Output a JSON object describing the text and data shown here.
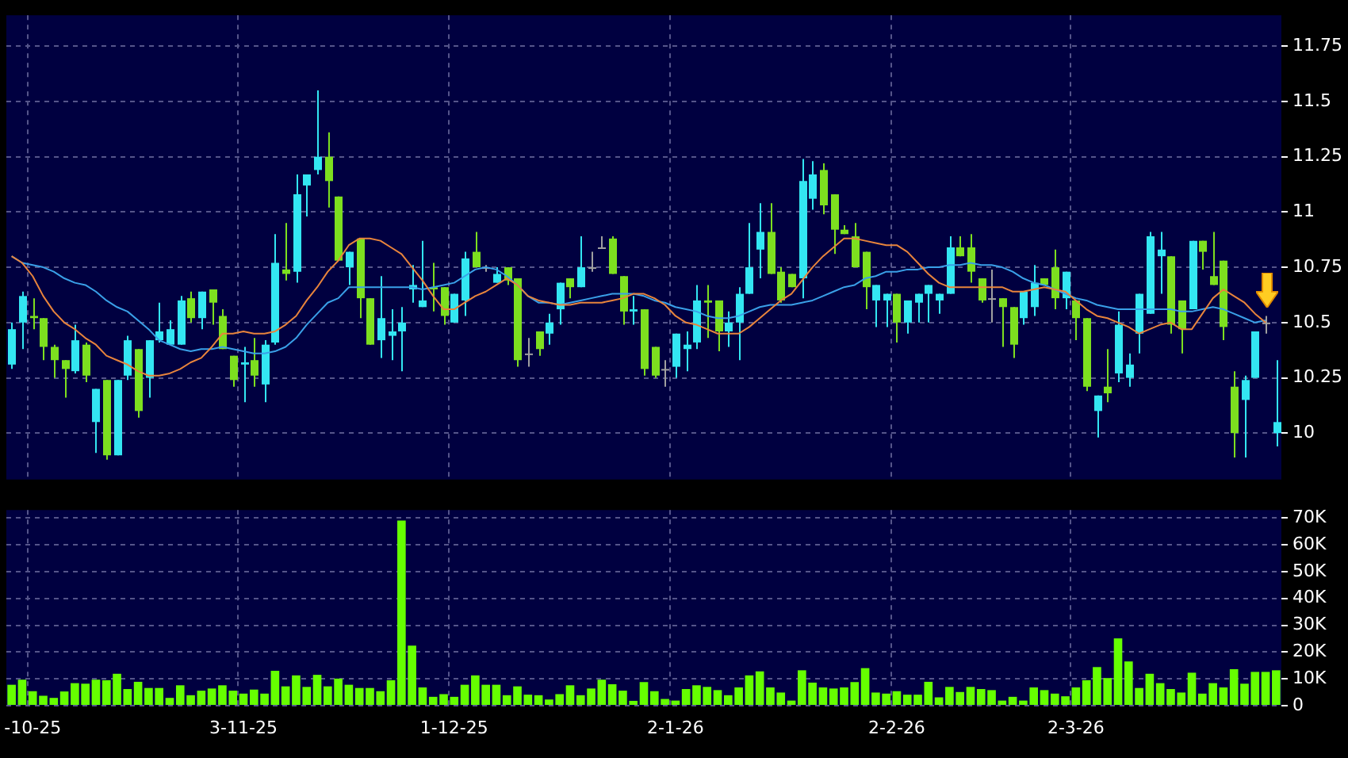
{
  "chart_data": [
    {
      "type": "candlestick",
      "categories": [
        null,
        null,
        null,
        null,
        null,
        null,
        null,
        null,
        null,
        null,
        null,
        null,
        null,
        null,
        null,
        null,
        null,
        null,
        null,
        null,
        null,
        null,
        null,
        null,
        null,
        null,
        null,
        null,
        null,
        null,
        null,
        null,
        null,
        null,
        null,
        null,
        null,
        null,
        null,
        null,
        null,
        null,
        null,
        null,
        null,
        null,
        null,
        null,
        null,
        null,
        null,
        null,
        null,
        null,
        null,
        null,
        null,
        null,
        null,
        null,
        null,
        null,
        null,
        null,
        null,
        null,
        null,
        null,
        null,
        null,
        null,
        null,
        null,
        null,
        null,
        null,
        null,
        null,
        null,
        null,
        null,
        null,
        null,
        null,
        null,
        null,
        null,
        null,
        null,
        null,
        null,
        null,
        null,
        null,
        null,
        null,
        null,
        null,
        null,
        null,
        null,
        null,
        null,
        null,
        null,
        null,
        null,
        null,
        null,
        null,
        null,
        null,
        null,
        null,
        null,
        null,
        null,
        null,
        null,
        null,
        null
      ],
      "ohlc": [
        [
          10.31,
          10.5,
          10.29,
          10.47
        ],
        [
          10.5,
          10.64,
          10.38,
          10.62
        ],
        [
          10.53,
          10.61,
          10.47,
          10.52
        ],
        [
          10.52,
          10.52,
          10.33,
          10.39
        ],
        [
          10.39,
          10.4,
          10.25,
          10.33
        ],
        [
          10.33,
          10.33,
          10.16,
          10.29
        ],
        [
          10.28,
          10.49,
          10.27,
          10.42
        ],
        [
          10.4,
          10.41,
          10.23,
          10.26
        ],
        [
          10.05,
          10.2,
          9.91,
          10.2
        ],
        [
          10.24,
          10.24,
          9.88,
          9.9
        ],
        [
          9.9,
          10.24,
          9.9,
          10.24
        ],
        [
          10.26,
          10.44,
          10.24,
          10.42
        ],
        [
          10.38,
          10.38,
          10.07,
          10.1
        ],
        [
          10.25,
          10.42,
          10.16,
          10.42
        ],
        [
          10.42,
          10.59,
          10.41,
          10.46
        ],
        [
          10.4,
          10.51,
          10.4,
          10.47
        ],
        [
          10.4,
          10.62,
          10.4,
          10.6
        ],
        [
          10.61,
          10.64,
          10.5,
          10.52
        ],
        [
          10.52,
          10.64,
          10.47,
          10.64
        ],
        [
          10.65,
          10.65,
          10.49,
          10.59
        ],
        [
          10.53,
          10.56,
          10.38,
          10.38
        ],
        [
          10.35,
          10.35,
          10.21,
          10.24
        ],
        [
          10.31,
          10.39,
          10.14,
          10.32
        ],
        [
          10.33,
          10.43,
          10.21,
          10.26
        ],
        [
          10.22,
          10.42,
          10.14,
          10.4
        ],
        [
          10.41,
          10.9,
          10.4,
          10.77
        ],
        [
          10.74,
          10.95,
          10.69,
          10.72
        ],
        [
          10.73,
          11.17,
          10.68,
          11.08
        ],
        [
          11.12,
          11.17,
          10.98,
          11.17
        ],
        [
          11.19,
          11.55,
          11.17,
          11.25
        ],
        [
          11.25,
          11.36,
          11.02,
          11.14
        ],
        [
          11.07,
          11.07,
          10.78,
          10.78
        ],
        [
          10.75,
          10.82,
          10.67,
          10.82
        ],
        [
          10.88,
          10.88,
          10.52,
          10.61
        ],
        [
          10.61,
          10.61,
          10.4,
          10.4
        ],
        [
          10.42,
          10.71,
          10.34,
          10.52
        ],
        [
          10.44,
          10.56,
          10.33,
          10.46
        ],
        [
          10.46,
          10.57,
          10.28,
          10.5
        ],
        [
          10.65,
          10.76,
          10.59,
          10.67
        ],
        [
          10.57,
          10.87,
          10.57,
          10.6
        ],
        [
          10.66,
          10.77,
          10.55,
          10.65
        ],
        [
          10.66,
          10.66,
          10.49,
          10.53
        ],
        [
          10.5,
          10.63,
          10.5,
          10.63
        ],
        [
          10.6,
          10.82,
          10.53,
          10.79
        ],
        [
          10.82,
          10.91,
          10.75,
          10.75
        ],
        [
          10.75,
          10.76,
          10.73,
          10.75
        ],
        [
          10.68,
          10.75,
          10.68,
          10.72
        ],
        [
          10.75,
          10.75,
          10.67,
          10.69
        ],
        [
          10.7,
          10.7,
          10.3,
          10.33
        ],
        [
          10.36,
          10.43,
          10.3,
          10.36
        ],
        [
          10.46,
          10.46,
          10.35,
          10.38
        ],
        [
          10.45,
          10.54,
          10.4,
          10.5
        ],
        [
          10.56,
          10.68,
          10.49,
          10.68
        ],
        [
          10.7,
          10.7,
          10.61,
          10.66
        ],
        [
          10.66,
          10.89,
          10.66,
          10.75
        ],
        [
          10.75,
          10.82,
          10.73,
          10.75
        ],
        [
          10.84,
          10.89,
          10.84,
          10.84
        ],
        [
          10.88,
          10.89,
          10.72,
          10.72
        ],
        [
          10.71,
          10.71,
          10.49,
          10.55
        ],
        [
          10.55,
          10.62,
          10.49,
          10.56
        ],
        [
          10.56,
          10.56,
          10.26,
          10.29
        ],
        [
          10.39,
          10.39,
          10.25,
          10.26
        ],
        [
          10.29,
          10.33,
          10.21,
          10.29
        ],
        [
          10.3,
          10.45,
          10.25,
          10.45
        ],
        [
          10.38,
          10.46,
          10.28,
          10.4
        ],
        [
          10.41,
          10.67,
          10.38,
          10.6
        ],
        [
          10.6,
          10.67,
          10.43,
          10.59
        ],
        [
          10.6,
          10.6,
          10.37,
          10.46
        ],
        [
          10.46,
          10.55,
          10.39,
          10.5
        ],
        [
          10.5,
          10.66,
          10.33,
          10.63
        ],
        [
          10.63,
          10.95,
          10.63,
          10.75
        ],
        [
          10.83,
          11.04,
          10.7,
          10.91
        ],
        [
          10.91,
          11.04,
          10.72,
          10.72
        ],
        [
          10.73,
          10.75,
          10.59,
          10.6
        ],
        [
          10.72,
          10.72,
          10.66,
          10.66
        ],
        [
          10.7,
          11.24,
          10.61,
          11.14
        ],
        [
          11.06,
          11.23,
          11.01,
          11.17
        ],
        [
          11.19,
          11.22,
          10.99,
          11.03
        ],
        [
          11.08,
          11.08,
          10.81,
          10.92
        ],
        [
          10.92,
          10.94,
          10.9,
          10.9
        ],
        [
          10.89,
          10.95,
          10.75,
          10.75
        ],
        [
          10.82,
          10.82,
          10.56,
          10.66
        ],
        [
          10.6,
          10.67,
          10.48,
          10.67
        ],
        [
          10.6,
          10.63,
          10.48,
          10.63
        ],
        [
          10.63,
          10.63,
          10.41,
          10.5
        ],
        [
          10.5,
          10.6,
          10.45,
          10.6
        ],
        [
          10.59,
          10.63,
          10.5,
          10.63
        ],
        [
          10.63,
          10.67,
          10.5,
          10.67
        ],
        [
          10.6,
          10.63,
          10.54,
          10.63
        ],
        [
          10.63,
          10.89,
          10.63,
          10.84
        ],
        [
          10.84,
          10.89,
          10.8,
          10.8
        ],
        [
          10.84,
          10.9,
          10.68,
          10.73
        ],
        [
          10.7,
          10.7,
          10.59,
          10.6
        ],
        [
          10.61,
          10.74,
          10.5,
          10.61
        ],
        [
          10.61,
          10.61,
          10.39,
          10.57
        ],
        [
          10.57,
          10.57,
          10.34,
          10.4
        ],
        [
          10.52,
          10.64,
          10.49,
          10.64
        ],
        [
          10.57,
          10.76,
          10.53,
          10.68
        ],
        [
          10.7,
          10.7,
          10.67,
          10.67
        ],
        [
          10.75,
          10.83,
          10.56,
          10.61
        ],
        [
          10.61,
          10.73,
          10.56,
          10.73
        ],
        [
          10.6,
          10.6,
          10.42,
          10.52
        ],
        [
          10.52,
          10.52,
          10.19,
          10.21
        ],
        [
          10.1,
          10.17,
          9.98,
          10.17
        ],
        [
          10.21,
          10.38,
          10.14,
          10.18
        ],
        [
          10.27,
          10.55,
          10.23,
          10.49
        ],
        [
          10.25,
          10.36,
          10.21,
          10.31
        ],
        [
          10.45,
          10.63,
          10.36,
          10.63
        ],
        [
          10.54,
          10.91,
          10.54,
          10.89
        ],
        [
          10.8,
          10.91,
          10.63,
          10.83
        ],
        [
          10.8,
          10.8,
          10.45,
          10.49
        ],
        [
          10.6,
          10.6,
          10.36,
          10.47
        ],
        [
          10.56,
          10.87,
          10.56,
          10.87
        ],
        [
          10.87,
          10.87,
          10.74,
          10.82
        ],
        [
          10.71,
          10.91,
          10.67,
          10.67
        ],
        [
          10.78,
          10.78,
          10.42,
          10.48
        ],
        [
          10.21,
          10.28,
          9.89,
          10.0
        ],
        [
          10.15,
          10.26,
          9.89,
          10.24
        ],
        [
          10.25,
          10.46,
          10.25,
          10.46
        ],
        [
          10.5,
          10.53,
          10.45,
          10.5
        ],
        [
          10.0,
          10.33,
          9.94,
          10.05
        ]
      ],
      "colors": [
        "#33e6f2",
        "#33e6f2",
        "#7ddf1f",
        "#7ddf1f",
        "#7ddf1f",
        "#7ddf1f",
        "#33e6f2",
        "#7ddf1f",
        "#33e6f2",
        "#7ddf1f",
        "#33e6f2",
        "#33e6f2",
        "#7ddf1f",
        "#33e6f2",
        "#33e6f2",
        "#33e6f2",
        "#33e6f2",
        "#7ddf1f",
        "#33e6f2",
        "#7ddf1f",
        "#7ddf1f",
        "#7ddf1f",
        "#33e6f2",
        "#7ddf1f",
        "#33e6f2",
        "#33e6f2",
        "#7ddf1f",
        "#33e6f2",
        "#33e6f2",
        "#33e6f2",
        "#7ddf1f",
        "#7ddf1f",
        "#33e6f2",
        "#7ddf1f",
        "#7ddf1f",
        "#33e6f2",
        "#33e6f2",
        "#33e6f2",
        "#33e6f2",
        "#33e6f2",
        "#7ddf1f",
        "#7ddf1f",
        "#33e6f2",
        "#33e6f2",
        "#7ddf1f",
        "#a0a0a0",
        "#33e6f2",
        "#7ddf1f",
        "#7ddf1f",
        "#a0a0a0",
        "#7ddf1f",
        "#33e6f2",
        "#33e6f2",
        "#7ddf1f",
        "#33e6f2",
        "#a0a0a0",
        "#a0a0a0",
        "#7ddf1f",
        "#7ddf1f",
        "#33e6f2",
        "#7ddf1f",
        "#7ddf1f",
        "#a0a0a0",
        "#33e6f2",
        "#33e6f2",
        "#33e6f2",
        "#7ddf1f",
        "#7ddf1f",
        "#33e6f2",
        "#33e6f2",
        "#33e6f2",
        "#33e6f2",
        "#7ddf1f",
        "#7ddf1f",
        "#7ddf1f",
        "#33e6f2",
        "#33e6f2",
        "#7ddf1f",
        "#7ddf1f",
        "#7ddf1f",
        "#7ddf1f",
        "#7ddf1f",
        "#33e6f2",
        "#33e6f2",
        "#7ddf1f",
        "#33e6f2",
        "#33e6f2",
        "#33e6f2",
        "#33e6f2",
        "#33e6f2",
        "#7ddf1f",
        "#7ddf1f",
        "#7ddf1f",
        "#a0a0a0",
        "#7ddf1f",
        "#7ddf1f",
        "#33e6f2",
        "#33e6f2",
        "#7ddf1f",
        "#7ddf1f",
        "#33e6f2",
        "#7ddf1f",
        "#7ddf1f",
        "#33e6f2",
        "#7ddf1f",
        "#33e6f2",
        "#33e6f2",
        "#33e6f2",
        "#33e6f2",
        "#33e6f2",
        "#7ddf1f",
        "#7ddf1f",
        "#33e6f2",
        "#7ddf1f",
        "#7ddf1f",
        "#7ddf1f",
        "#7ddf1f",
        "#33e6f2",
        "#33e6f2",
        "#a0a0a0",
        "#33e6f2"
      ],
      "series": [
        {
          "type": "line",
          "color": "#e8843c",
          "values": [
            10.8,
            10.77,
            10.71,
            10.62,
            10.55,
            10.5,
            10.47,
            10.43,
            10.4,
            10.35,
            10.33,
            10.31,
            10.28,
            10.26,
            10.26,
            10.27,
            10.29,
            10.32,
            10.34,
            10.39,
            10.45,
            10.45,
            10.46,
            10.45,
            10.45,
            10.46,
            10.49,
            10.53,
            10.6,
            10.66,
            10.73,
            10.78,
            10.85,
            10.88,
            10.88,
            10.87,
            10.84,
            10.81,
            10.75,
            10.69,
            10.62,
            10.56,
            10.56,
            10.59,
            10.62,
            10.64,
            10.67,
            10.7,
            10.67,
            10.62,
            10.6,
            10.59,
            10.58,
            10.58,
            10.59,
            10.59,
            10.59,
            10.6,
            10.61,
            10.63,
            10.63,
            10.61,
            10.58,
            10.53,
            10.5,
            10.49,
            10.47,
            10.45,
            10.45,
            10.45,
            10.48,
            10.52,
            10.56,
            10.6,
            10.63,
            10.69,
            10.75,
            10.8,
            10.84,
            10.88,
            10.88,
            10.87,
            10.86,
            10.85,
            10.85,
            10.82,
            10.77,
            10.72,
            10.68,
            10.66,
            10.66,
            10.66,
            10.66,
            10.66,
            10.66,
            10.64,
            10.64,
            10.65,
            10.66,
            10.65,
            10.64,
            10.6,
            10.56,
            10.53,
            10.52,
            10.5,
            10.48,
            10.45,
            10.47,
            10.49,
            10.5,
            10.47,
            10.47,
            10.54,
            10.61,
            10.65,
            10.62,
            10.59,
            10.54,
            10.5,
            null
          ]
        },
        {
          "type": "line",
          "color": "#3aa0e8",
          "values": [
            10.8,
            10.77,
            10.76,
            10.75,
            10.73,
            10.7,
            10.68,
            10.67,
            10.64,
            10.6,
            10.57,
            10.55,
            10.51,
            10.47,
            10.42,
            10.4,
            10.38,
            10.37,
            10.38,
            10.38,
            10.39,
            10.38,
            10.37,
            10.36,
            10.36,
            10.37,
            10.39,
            10.43,
            10.49,
            10.54,
            10.59,
            10.61,
            10.66,
            10.66,
            10.66,
            10.66,
            10.66,
            10.66,
            10.66,
            10.65,
            10.66,
            10.67,
            10.68,
            10.71,
            10.74,
            10.75,
            10.74,
            10.71,
            10.67,
            10.62,
            10.59,
            10.59,
            10.58,
            10.59,
            10.6,
            10.61,
            10.62,
            10.63,
            10.63,
            10.63,
            10.62,
            10.6,
            10.59,
            10.57,
            10.56,
            10.55,
            10.53,
            10.52,
            10.52,
            10.53,
            10.55,
            10.57,
            10.58,
            10.58,
            10.58,
            10.59,
            10.6,
            10.62,
            10.64,
            10.66,
            10.67,
            10.7,
            10.71,
            10.73,
            10.73,
            10.74,
            10.74,
            10.75,
            10.75,
            10.76,
            10.76,
            10.77,
            10.76,
            10.76,
            10.75,
            10.73,
            10.7,
            10.68,
            10.67,
            10.65,
            10.63,
            10.61,
            10.6,
            10.58,
            10.57,
            10.56,
            10.56,
            10.56,
            10.56,
            10.56,
            10.56,
            10.55,
            10.55,
            10.56,
            10.57,
            10.56,
            10.54,
            10.52,
            10.5,
            10.51,
            null
          ]
        }
      ],
      "ylim": [
        9.79,
        11.89
      ],
      "yticks": [
        10,
        10.25,
        10.5,
        10.75,
        11,
        11.25,
        11.5,
        11.75
      ],
      "grid": true,
      "tick_labels": "y"
    },
    {
      "type": "bar",
      "categories": [
        null,
        null,
        "-10-25",
        null,
        null,
        null,
        null,
        null,
        null,
        null,
        null,
        null,
        null,
        null,
        null,
        null,
        null,
        null,
        null,
        null,
        null,
        null,
        "3-11-25",
        null,
        null,
        null,
        null,
        null,
        null,
        null,
        null,
        null,
        null,
        null,
        null,
        null,
        null,
        null,
        null,
        null,
        null,
        null,
        "1-12-25",
        null,
        null,
        null,
        null,
        null,
        null,
        null,
        null,
        null,
        null,
        null,
        null,
        null,
        null,
        null,
        null,
        null,
        null,
        null,
        null,
        "2-1-26",
        null,
        null,
        null,
        null,
        null,
        null,
        null,
        null,
        null,
        null,
        null,
        null,
        null,
        null,
        null,
        null,
        null,
        null,
        null,
        null,
        "2-2-26",
        null,
        null,
        null,
        null,
        null,
        null,
        null,
        null,
        null,
        null,
        null,
        null,
        null,
        null,
        null,
        null,
        "2-3-26",
        null,
        null,
        null,
        null,
        null,
        null,
        null,
        null,
        null,
        null,
        null,
        null,
        null,
        null,
        null,
        null,
        null,
        null,
        null
      ],
      "values": [
        7800,
        9700,
        5400,
        3700,
        2900,
        5300,
        8400,
        8200,
        9700,
        9500,
        11900,
        6200,
        8900,
        6600,
        6600,
        2900,
        7600,
        3900,
        5600,
        6400,
        7600,
        5600,
        4500,
        6000,
        4500,
        13000,
        7200,
        11300,
        7000,
        11500,
        7200,
        10100,
        7800,
        6600,
        6600,
        5400,
        9500,
        69100,
        22400,
        6800,
        3300,
        4300,
        3300,
        7800,
        11300,
        7800,
        7800,
        3900,
        7200,
        4100,
        3900,
        2300,
        4300,
        7600,
        3900,
        6400,
        9700,
        8000,
        5600,
        1800,
        8800,
        5400,
        2500,
        1900,
        6200,
        7600,
        7000,
        5800,
        3900,
        6800,
        11300,
        12800,
        6800,
        4900,
        1900,
        13200,
        8600,
        6800,
        6400,
        6800,
        8800,
        14000,
        4900,
        4500,
        5400,
        4100,
        4100,
        8900,
        3100,
        7000,
        5100,
        7000,
        6200,
        5800,
        1900,
        3300,
        1900,
        6800,
        5800,
        4500,
        3500,
        6800,
        9500,
        14400,
        10300,
        25100,
        16500,
        6600,
        11900,
        8400,
        6200,
        4900,
        12300,
        4500,
        8400,
        6800,
        13600,
        8200,
        12600,
        12600,
        13200
      ],
      "color": "#66ff00",
      "ylim": [
        0,
        73000
      ],
      "yticks": [
        {
          "value": 0,
          "label": "0"
        },
        {
          "value": 10000,
          "label": "10K"
        },
        {
          "value": 20000,
          "label": "20K"
        },
        {
          "value": 30000,
          "label": "30K"
        },
        {
          "value": 40000,
          "label": "40K"
        },
        {
          "value": 50000,
          "label": "50K"
        },
        {
          "value": 60000,
          "label": "60K"
        },
        {
          "value": 70000,
          "label": "70K"
        }
      ],
      "grid": true
    }
  ]
}
